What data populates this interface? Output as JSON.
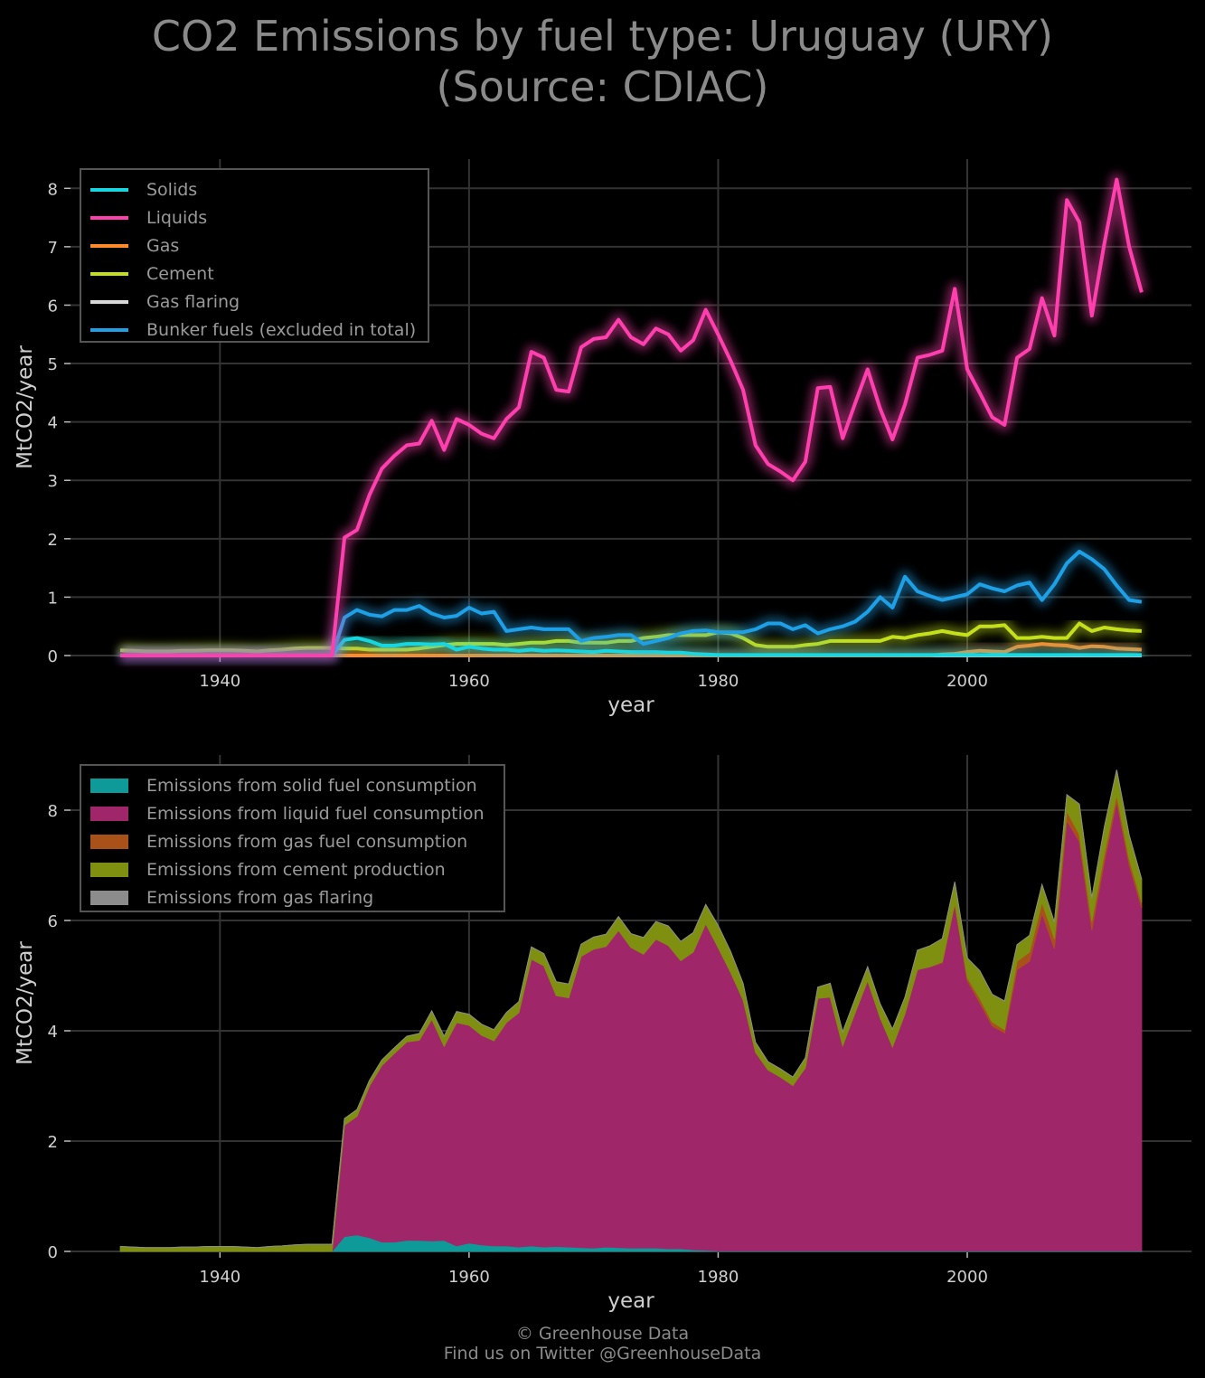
{
  "title": {
    "line1": "CO2 Emissions by fuel type: Uruguay (URY)",
    "line2": "(Source: CDIAC)"
  },
  "credits": {
    "line1": "© Greenhouse Data",
    "line2": "Find us on Twitter @GreenhouseData"
  },
  "colors": {
    "background": "#000000",
    "grid": "#333333",
    "text": "#cfcfcf",
    "solids": "#18d6e0",
    "liquids": "#ff3fae",
    "gas": "#ff8a2b",
    "cement": "#c5e01a",
    "gas_flaring": "#d8d8d8",
    "bunker": "#1ea0e6",
    "area_solid": "#0f9a9a",
    "area_liquid": "#a0266a",
    "area_gas": "#a8521a",
    "area_cement": "#7f8f10",
    "area_flaring": "#8c8c8c"
  },
  "chart_data": [
    {
      "type": "line",
      "xlabel": "year",
      "ylabel": "MtCO2/year",
      "xlim": [
        1928,
        2018
      ],
      "ylim": [
        0,
        8.5
      ],
      "xticks": [
        1940,
        1960,
        1980,
        2000
      ],
      "yticks": [
        0,
        1,
        2,
        3,
        4,
        5,
        6,
        7,
        8
      ],
      "grid": true,
      "legend_position": "top-left",
      "x": [
        1932,
        1933,
        1934,
        1935,
        1936,
        1937,
        1938,
        1939,
        1940,
        1941,
        1942,
        1943,
        1944,
        1945,
        1946,
        1947,
        1948,
        1949,
        1950,
        1951,
        1952,
        1953,
        1954,
        1955,
        1956,
        1957,
        1958,
        1959,
        1960,
        1961,
        1962,
        1963,
        1964,
        1965,
        1966,
        1967,
        1968,
        1969,
        1970,
        1971,
        1972,
        1973,
        1974,
        1975,
        1976,
        1977,
        1978,
        1979,
        1980,
        1981,
        1982,
        1983,
        1984,
        1985,
        1986,
        1987,
        1988,
        1989,
        1990,
        1991,
        1992,
        1993,
        1994,
        1995,
        1996,
        1997,
        1998,
        1999,
        2000,
        2001,
        2002,
        2003,
        2004,
        2005,
        2006,
        2007,
        2008,
        2009,
        2010,
        2011,
        2012,
        2013,
        2014
      ],
      "series": [
        {
          "name": "Solids",
          "color_key": "solids",
          "values": [
            0,
            0,
            0,
            0,
            0,
            0,
            0,
            0,
            0,
            0,
            0,
            0,
            0,
            0,
            0,
            0,
            0,
            0,
            0.27,
            0.3,
            0.25,
            0.17,
            0.17,
            0.2,
            0.2,
            0.19,
            0.2,
            0.1,
            0.15,
            0.12,
            0.1,
            0.1,
            0.08,
            0.1,
            0.08,
            0.09,
            0.08,
            0.07,
            0.06,
            0.08,
            0.07,
            0.06,
            0.06,
            0.06,
            0.05,
            0.05,
            0.03,
            0.02,
            0.01,
            0.01,
            0.01,
            0.01,
            0.01,
            0.01,
            0.01,
            0.01,
            0.01,
            0.01,
            0.01,
            0.01,
            0.01,
            0.01,
            0.01,
            0.01,
            0.01,
            0.01,
            0.01,
            0.01,
            0.01,
            0.01,
            0.01,
            0.01,
            0.01,
            0.01,
            0.01,
            0.01,
            0.01,
            0.01,
            0.01,
            0.01,
            0.01,
            0.01,
            0.01
          ]
        },
        {
          "name": "Liquids",
          "color_key": "liquids",
          "values": [
            0,
            0,
            0,
            0,
            0,
            0,
            0,
            0,
            0,
            0,
            0,
            0,
            0,
            0,
            0,
            0,
            0,
            0,
            2.02,
            2.15,
            2.75,
            3.2,
            3.42,
            3.6,
            3.63,
            4.02,
            3.52,
            4.05,
            3.95,
            3.8,
            3.72,
            4.05,
            4.25,
            5.2,
            5.1,
            4.55,
            4.52,
            5.28,
            5.42,
            5.45,
            5.75,
            5.45,
            5.33,
            5.6,
            5.5,
            5.22,
            5.4,
            5.92,
            5.5,
            5.05,
            4.55,
            3.6,
            3.28,
            3.15,
            3.0,
            3.32,
            4.58,
            4.6,
            3.72,
            4.32,
            4.9,
            4.23,
            3.7,
            4.3,
            5.1,
            5.15,
            5.22,
            6.28,
            4.9,
            4.5,
            4.08,
            3.95,
            5.1,
            5.25,
            6.12,
            5.48,
            7.8,
            7.42,
            5.82,
            7.05,
            8.15,
            7.0,
            6.22
          ]
        },
        {
          "name": "Gas",
          "color_key": "gas",
          "values": [
            0,
            0,
            0,
            0,
            0,
            0,
            0,
            0,
            0,
            0,
            0,
            0,
            0,
            0,
            0,
            0,
            0,
            0,
            0,
            0,
            0,
            0,
            0,
            0,
            0,
            0,
            0,
            0,
            0,
            0,
            0,
            0,
            0,
            0,
            0,
            0,
            0,
            0,
            0,
            0,
            0,
            0,
            0,
            0,
            0,
            0,
            0,
            0,
            0,
            0,
            0,
            0,
            0,
            0,
            0,
            0,
            0,
            0,
            0,
            0,
            0,
            0,
            0,
            0,
            0,
            0,
            0.02,
            0.03,
            0.06,
            0.08,
            0.07,
            0.06,
            0.15,
            0.17,
            0.2,
            0.18,
            0.17,
            0.13,
            0.16,
            0.15,
            0.12,
            0.11,
            0.1
          ]
        },
        {
          "name": "Cement",
          "color_key": "cement",
          "values": [
            0.09,
            0.08,
            0.07,
            0.07,
            0.07,
            0.08,
            0.08,
            0.09,
            0.09,
            0.09,
            0.08,
            0.07,
            0.09,
            0.1,
            0.12,
            0.13,
            0.13,
            0.13,
            0.12,
            0.12,
            0.1,
            0.1,
            0.1,
            0.1,
            0.12,
            0.15,
            0.18,
            0.2,
            0.2,
            0.2,
            0.2,
            0.18,
            0.2,
            0.22,
            0.22,
            0.25,
            0.25,
            0.22,
            0.22,
            0.22,
            0.25,
            0.25,
            0.3,
            0.32,
            0.35,
            0.35,
            0.35,
            0.35,
            0.4,
            0.38,
            0.3,
            0.18,
            0.15,
            0.15,
            0.15,
            0.18,
            0.2,
            0.25,
            0.25,
            0.25,
            0.25,
            0.25,
            0.32,
            0.3,
            0.35,
            0.38,
            0.42,
            0.38,
            0.35,
            0.5,
            0.5,
            0.52,
            0.3,
            0.3,
            0.32,
            0.3,
            0.3,
            0.55,
            0.42,
            0.48,
            0.45,
            0.43,
            0.42
          ]
        },
        {
          "name": "Gas flaring",
          "color_key": "gas_flaring",
          "values": [
            0,
            0,
            0,
            0,
            0,
            0,
            0,
            0,
            0,
            0,
            0,
            0,
            0,
            0,
            0,
            0,
            0,
            0,
            0,
            0,
            0,
            0,
            0,
            0,
            0,
            0,
            0,
            0,
            0,
            0,
            0,
            0,
            0,
            0,
            0,
            0,
            0,
            0,
            0,
            0,
            0,
            0,
            0,
            0,
            0,
            0,
            0,
            0,
            0,
            0,
            0,
            0,
            0,
            0,
            0,
            0,
            0,
            0,
            0,
            0,
            0,
            0,
            0,
            0,
            0,
            0,
            0,
            0,
            0,
            0,
            0,
            0,
            0,
            0,
            0,
            0,
            0,
            0,
            0,
            0,
            0,
            0,
            0
          ]
        },
        {
          "name": "Bunker fuels (excluded in total)",
          "color_key": "bunker",
          "values": [
            0,
            0,
            0,
            0,
            0,
            0,
            0,
            0,
            0,
            0,
            0,
            0,
            0,
            0,
            0,
            0,
            0,
            0,
            0.65,
            0.78,
            0.7,
            0.67,
            0.78,
            0.78,
            0.85,
            0.72,
            0.65,
            0.68,
            0.82,
            0.72,
            0.75,
            0.42,
            0.45,
            0.48,
            0.45,
            0.45,
            0.45,
            0.25,
            0.3,
            0.32,
            0.35,
            0.35,
            0.2,
            0.25,
            0.3,
            0.38,
            0.42,
            0.43,
            0.4,
            0.4,
            0.4,
            0.45,
            0.55,
            0.55,
            0.45,
            0.52,
            0.38,
            0.45,
            0.5,
            0.58,
            0.75,
            1.0,
            0.82,
            1.35,
            1.1,
            1.02,
            0.95,
            1.0,
            1.05,
            1.22,
            1.15,
            1.1,
            1.2,
            1.25,
            0.95,
            1.22,
            1.58,
            1.78,
            1.65,
            1.48,
            1.2,
            0.95,
            0.92
          ]
        }
      ]
    },
    {
      "type": "area",
      "stacked": true,
      "xlabel": "year",
      "ylabel": "MtCO2/year",
      "xlim": [
        1928,
        2018
      ],
      "ylim": [
        0,
        9.0
      ],
      "xticks": [
        1940,
        1960,
        1980,
        2000
      ],
      "yticks": [
        0,
        2,
        4,
        6,
        8
      ],
      "grid": true,
      "legend_position": "top-left",
      "series": [
        {
          "name": "Emissions from solid fuel consumption",
          "color_key": "area_solid",
          "source_index": 0
        },
        {
          "name": "Emissions from liquid fuel consumption",
          "color_key": "area_liquid",
          "source_index": 1
        },
        {
          "name": "Emissions from gas fuel consumption",
          "color_key": "area_gas",
          "source_index": 2
        },
        {
          "name": "Emissions from cement production",
          "color_key": "area_cement",
          "source_index": 3
        },
        {
          "name": "Emissions from gas flaring",
          "color_key": "area_flaring",
          "source_index": 4
        }
      ]
    }
  ]
}
